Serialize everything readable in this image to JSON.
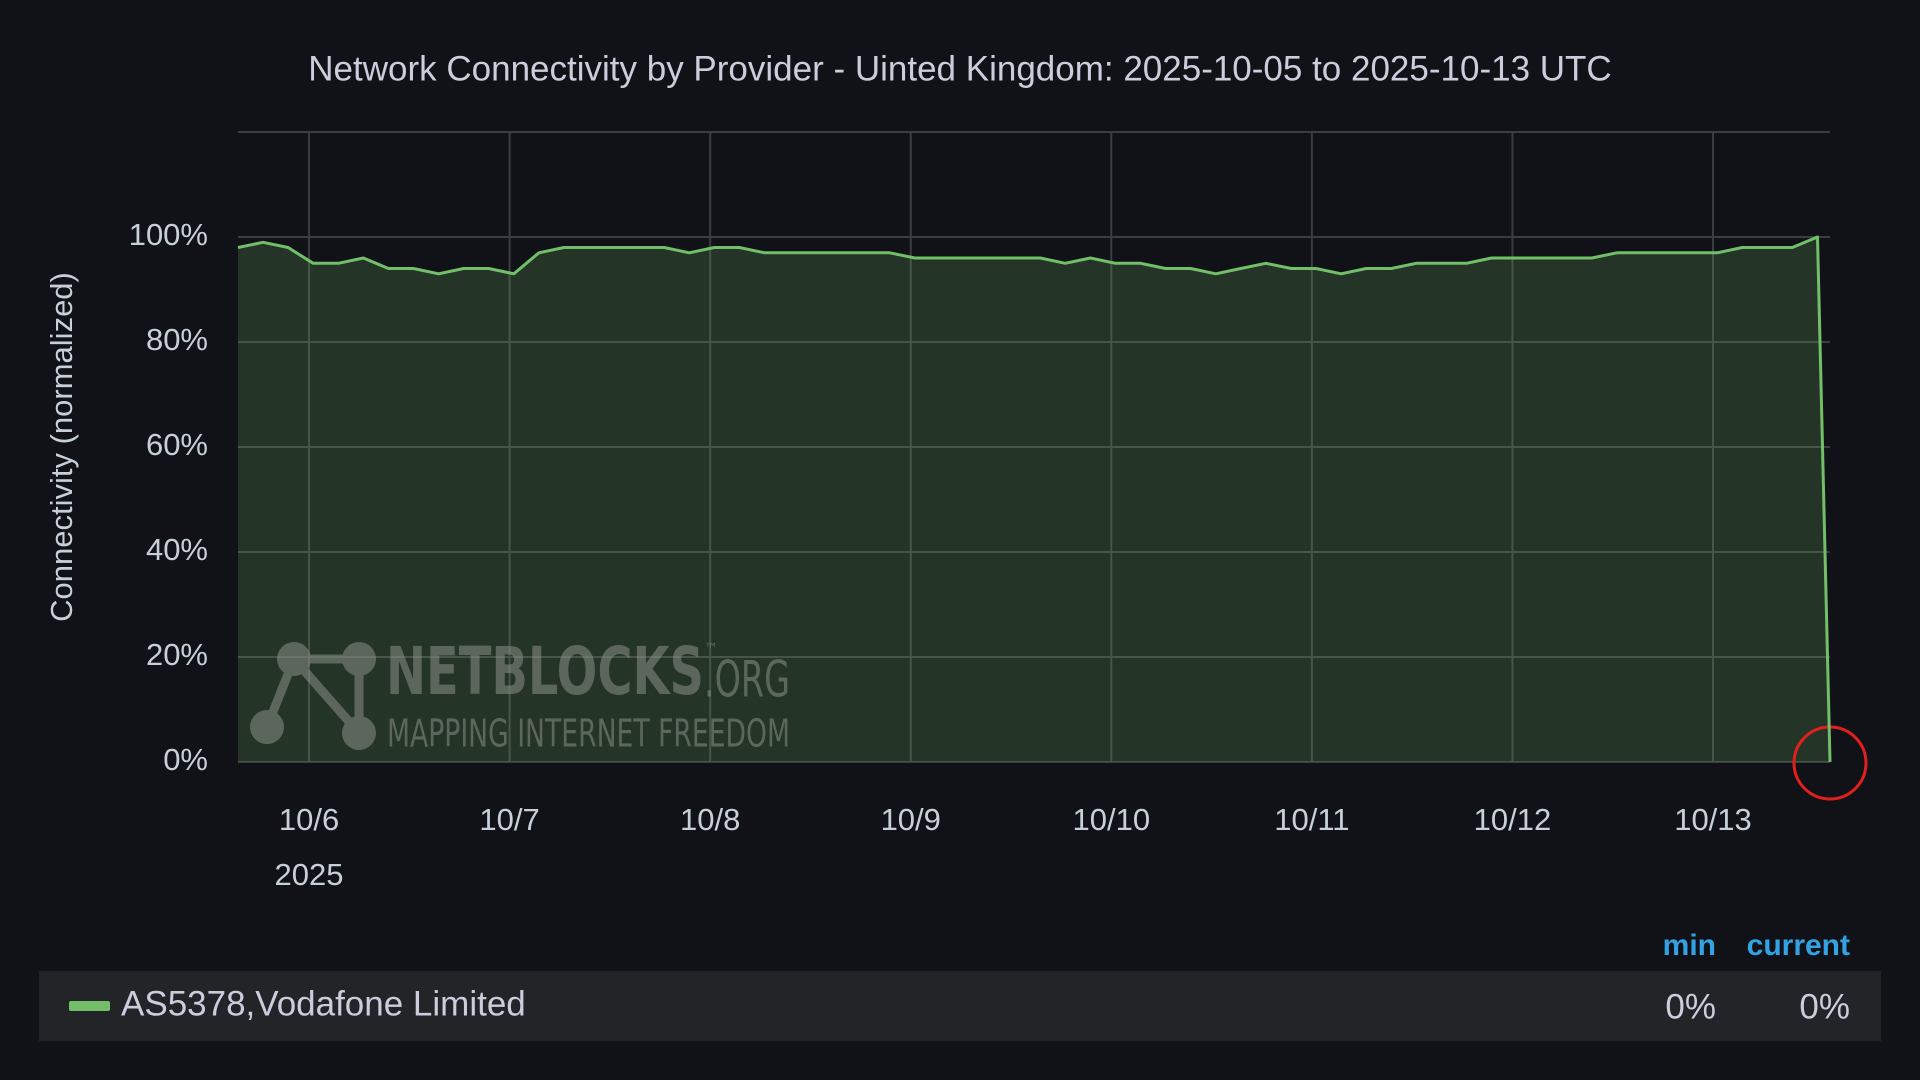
{
  "chart_data": {
    "type": "line",
    "title": "Network Connectivity by Provider - Uinted Kingdom: 2025-10-05 to 2025-10-13 UTC",
    "y_label": "Connectivity (normalized)",
    "x": [
      "2025-10-05T15:30Z",
      "2025-10-05T18:30Z",
      "2025-10-05T21:30Z",
      "2025-10-06T00:30Z",
      "2025-10-06T03:30Z",
      "2025-10-06T06:30Z",
      "2025-10-06T09:30Z",
      "2025-10-06T12:30Z",
      "2025-10-06T15:30Z",
      "2025-10-06T18:30Z",
      "2025-10-06T21:30Z",
      "2025-10-07T00:30Z",
      "2025-10-07T03:30Z",
      "2025-10-07T06:30Z",
      "2025-10-07T09:30Z",
      "2025-10-07T12:30Z",
      "2025-10-07T15:30Z",
      "2025-10-07T18:30Z",
      "2025-10-07T21:30Z",
      "2025-10-08T00:30Z",
      "2025-10-08T03:30Z",
      "2025-10-08T06:30Z",
      "2025-10-08T09:30Z",
      "2025-10-08T12:30Z",
      "2025-10-08T15:30Z",
      "2025-10-08T18:30Z",
      "2025-10-08T21:30Z",
      "2025-10-09T00:30Z",
      "2025-10-09T03:30Z",
      "2025-10-09T06:30Z",
      "2025-10-09T09:30Z",
      "2025-10-09T12:30Z",
      "2025-10-09T15:30Z",
      "2025-10-09T18:30Z",
      "2025-10-09T21:30Z",
      "2025-10-10T00:30Z",
      "2025-10-10T03:30Z",
      "2025-10-10T06:30Z",
      "2025-10-10T09:30Z",
      "2025-10-10T12:30Z",
      "2025-10-10T15:30Z",
      "2025-10-10T18:30Z",
      "2025-10-10T21:30Z",
      "2025-10-11T00:30Z",
      "2025-10-11T03:30Z",
      "2025-10-11T06:30Z",
      "2025-10-11T09:30Z",
      "2025-10-11T12:30Z",
      "2025-10-11T15:30Z",
      "2025-10-11T18:30Z",
      "2025-10-11T21:30Z",
      "2025-10-12T00:30Z",
      "2025-10-12T03:30Z",
      "2025-10-12T06:30Z",
      "2025-10-12T09:30Z",
      "2025-10-12T12:30Z",
      "2025-10-12T15:30Z",
      "2025-10-12T18:30Z",
      "2025-10-12T21:30Z",
      "2025-10-13T00:30Z",
      "2025-10-13T03:30Z",
      "2025-10-13T06:30Z",
      "2025-10-13T09:30Z",
      "2025-10-13T12:30Z",
      "2025-10-13T14:00Z"
    ],
    "series": [
      {
        "name": "AS5378,Vodafone Limited",
        "color": "#73bf69",
        "values": [
          98,
          99,
          98,
          95,
          95,
          96,
          94,
          94,
          93,
          94,
          94,
          93,
          97,
          98,
          98,
          98,
          98,
          98,
          97,
          98,
          98,
          97,
          97,
          97,
          97,
          97,
          97,
          96,
          96,
          96,
          96,
          96,
          96,
          95,
          96,
          95,
          95,
          94,
          94,
          93,
          94,
          95,
          94,
          94,
          93,
          94,
          94,
          95,
          95,
          95,
          96,
          96,
          96,
          96,
          96,
          97,
          97,
          97,
          97,
          97,
          98,
          98,
          98,
          100,
          0
        ]
      }
    ],
    "xlim": [
      "2025-10-05T15:30Z",
      "2025-10-13T14:00Z"
    ],
    "xticks": [
      {
        "value": "2025-10-06T00:00Z",
        "label": "10/6"
      },
      {
        "value": "2025-10-07T00:00Z",
        "label": "10/7"
      },
      {
        "value": "2025-10-08T00:00Z",
        "label": "10/8"
      },
      {
        "value": "2025-10-09T00:00Z",
        "label": "10/9"
      },
      {
        "value": "2025-10-10T00:00Z",
        "label": "10/10"
      },
      {
        "value": "2025-10-11T00:00Z",
        "label": "10/11"
      },
      {
        "value": "2025-10-12T00:00Z",
        "label": "10/12"
      },
      {
        "value": "2025-10-13T00:00Z",
        "label": "10/13"
      }
    ],
    "x_year_label": "2025",
    "ylim": [
      0,
      120
    ],
    "yticks": [
      {
        "value": 0,
        "label": "0%"
      },
      {
        "value": 20,
        "label": "20%"
      },
      {
        "value": 40,
        "label": "40%"
      },
      {
        "value": 60,
        "label": "60%"
      },
      {
        "value": 80,
        "label": "80%"
      },
      {
        "value": 100,
        "label": "100%"
      }
    ],
    "grid": true,
    "legend_stats": {
      "headers": [
        "min",
        "current"
      ],
      "values": [
        0,
        0
      ],
      "value_labels": [
        "0%",
        "0%"
      ]
    },
    "watermark": {
      "brand": "NETBLOCKS",
      "tm": "™",
      "domain": ".ORG",
      "tagline": "MAPPING INTERNET FREEDOM"
    }
  }
}
